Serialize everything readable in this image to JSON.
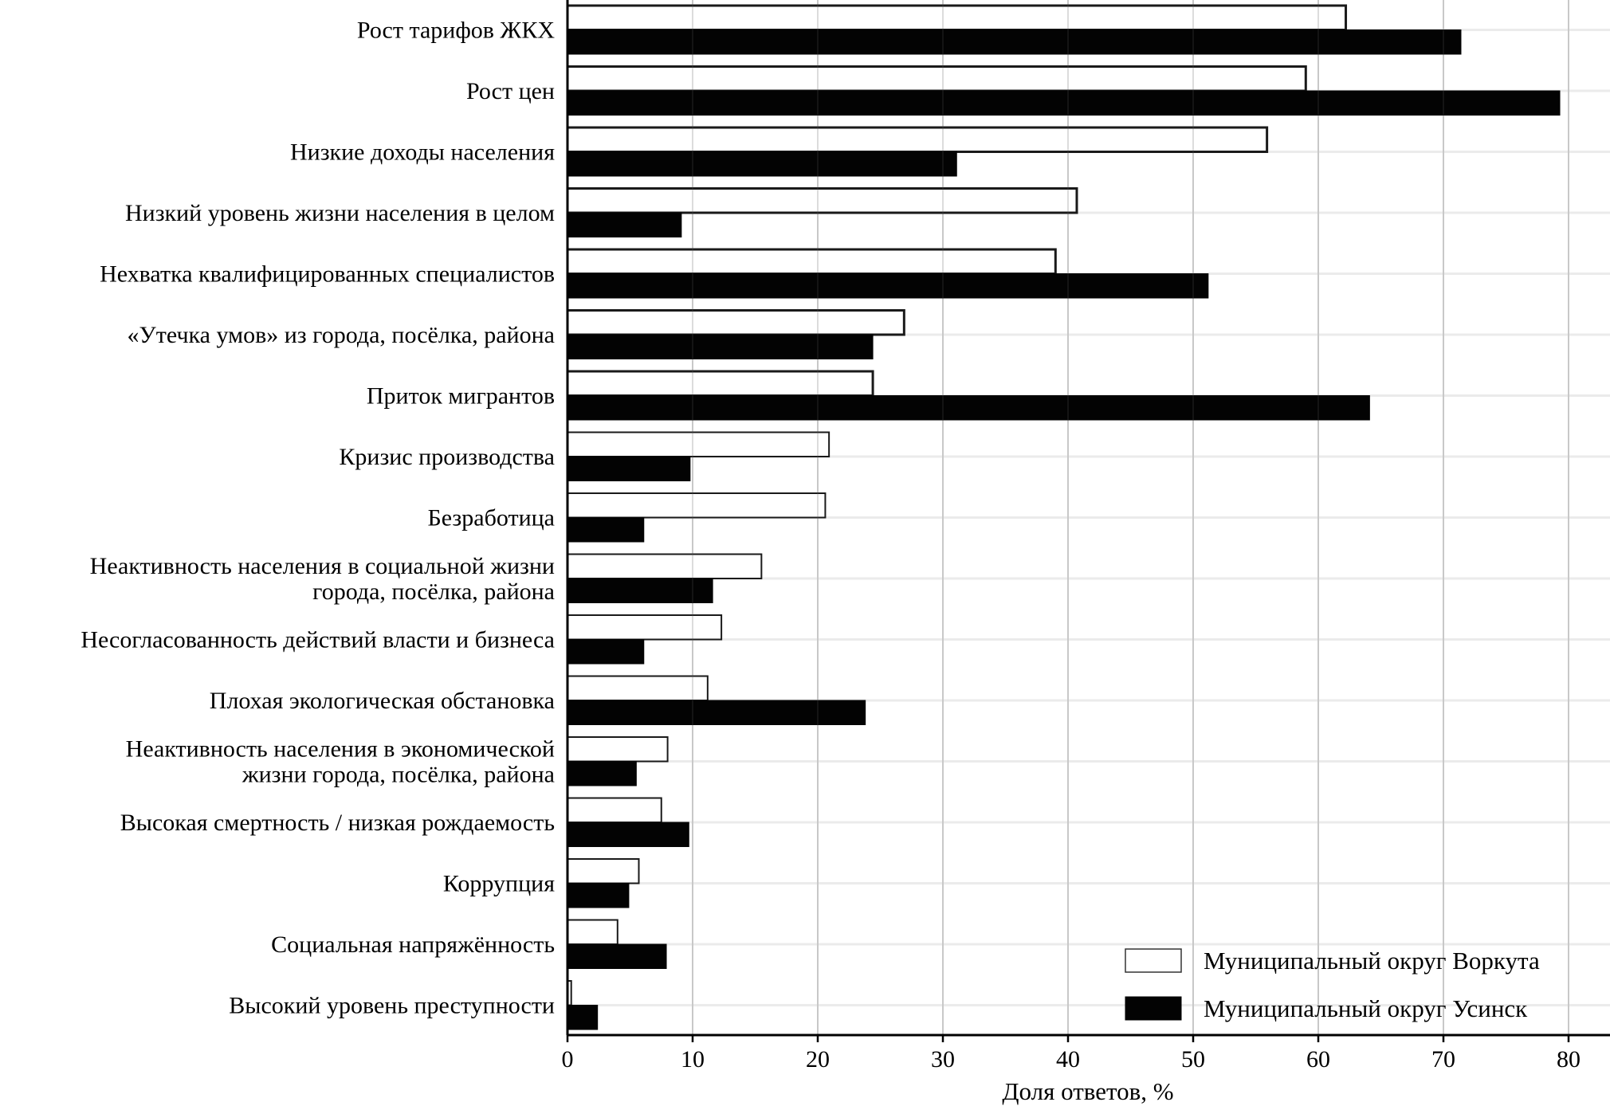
{
  "chart_data": {
    "type": "bar",
    "orientation": "horizontal",
    "title": "",
    "xlabel": "Доля ответов, %",
    "ylabel": "",
    "xlim": [
      0,
      83.3
    ],
    "xticks": [
      0,
      10,
      20,
      30,
      40,
      50,
      60,
      70,
      80
    ],
    "grid": true,
    "legend_position": "bottom-right",
    "categories": [
      [
        "Рост тарифов ЖКХ"
      ],
      [
        "Рост цен"
      ],
      [
        "Низкие доходы населения"
      ],
      [
        "Низкий уровень жизни населения в целом"
      ],
      [
        "Нехватка квалифицированных специалистов"
      ],
      [
        "«Утечка умов» из города, посёлка, района"
      ],
      [
        "Приток мигрантов"
      ],
      [
        "Кризис производства"
      ],
      [
        "Безработица"
      ],
      [
        "Неактивность населения в социальной жизни",
        "города, посёлка, района"
      ],
      [
        "Несогласованность действий власти и бизнеса"
      ],
      [
        "Плохая экологическая обстановка"
      ],
      [
        "Неактивность населения в экономической",
        "жизни города, посёлка, района"
      ],
      [
        "Высокая смертность / низкая рождаемость"
      ],
      [
        "Коррупция"
      ],
      [
        "Социальная напряжённость"
      ],
      [
        "Высокий уровень преступности"
      ]
    ],
    "series": [
      {
        "name": "Муниципальный округ Воркута",
        "fill": "#ffffff",
        "stroke": "#1a1a1a",
        "values": [
          62.2,
          59.0,
          55.9,
          40.7,
          39.0,
          26.9,
          24.4,
          20.9,
          20.6,
          15.5,
          12.3,
          11.2,
          8.0,
          7.5,
          5.7,
          4.0,
          0.3
        ]
      },
      {
        "name": "Муниципальный округ Усинск",
        "fill": "#030303",
        "stroke": "#030303",
        "values": [
          71.4,
          79.3,
          31.1,
          9.1,
          51.2,
          24.4,
          64.1,
          9.8,
          6.1,
          11.6,
          6.1,
          23.8,
          5.5,
          9.7,
          4.9,
          7.9,
          2.4
        ]
      }
    ]
  }
}
